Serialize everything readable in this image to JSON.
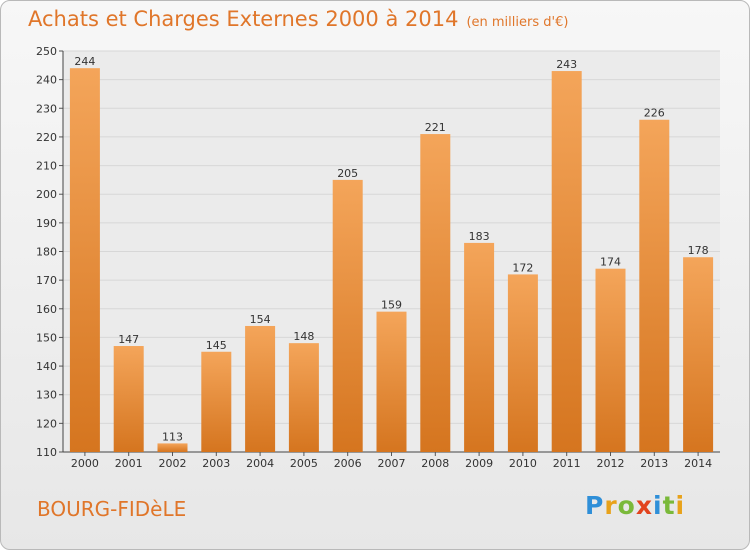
{
  "title": "Achats et Charges Externes 2000 à 2014",
  "unit": "(en milliers d'€)",
  "commune": "BOURG-FIDèLE",
  "logo": {
    "letters": [
      "P",
      "r",
      "o",
      "x",
      "i",
      "t",
      "i"
    ]
  },
  "colors": {
    "title": "#e0762a",
    "bar_light": "#f4a55a",
    "bar_dark": "#d5751f",
    "grid": "#d7d7d7"
  },
  "chart_data": {
    "type": "bar",
    "title": "Achats et Charges Externes 2000 à 2014",
    "subtitle": "(en milliers d'€)",
    "categories": [
      "2000",
      "2001",
      "2002",
      "2003",
      "2004",
      "2005",
      "2006",
      "2007",
      "2008",
      "2009",
      "2010",
      "2011",
      "2012",
      "2013",
      "2014"
    ],
    "values": [
      244,
      147,
      113,
      145,
      154,
      148,
      205,
      159,
      221,
      183,
      172,
      243,
      174,
      226,
      178
    ],
    "ylim": [
      110,
      250
    ],
    "yticks": [
      110,
      120,
      130,
      140,
      150,
      160,
      170,
      180,
      190,
      200,
      210,
      220,
      230,
      240,
      250
    ],
    "grid": true,
    "data_labels": true
  }
}
